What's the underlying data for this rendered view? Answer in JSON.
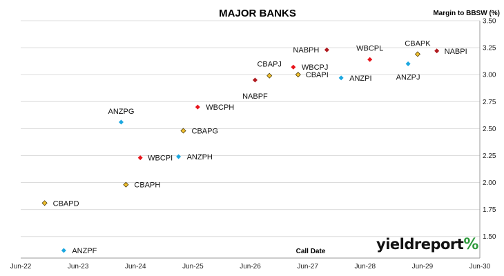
{
  "chart_data": {
    "type": "scatter",
    "title": "MAJOR BANKS",
    "ylabel": "Margin to BBSW (%)",
    "xlabel": "Call Date",
    "ylim": [
      1.3,
      3.5
    ],
    "yticks": [
      "1.50",
      "1.75",
      "2.00",
      "2.25",
      "2.50",
      "2.75",
      "3.00",
      "3.25",
      "3.50"
    ],
    "xlim": [
      "2022-06",
      "2030-06"
    ],
    "xticks": [
      "Jun-22",
      "Jun-23",
      "Jun-24",
      "Jun-25",
      "Jun-26",
      "Jun-27",
      "Jun-28",
      "Jun-29",
      "Jun-30"
    ],
    "grid": "horizontal",
    "y_axis_side": "right",
    "legend": "none",
    "colors": {
      "CBA": "#f2c12e",
      "WBC": "#e8141b",
      "ANZ": "#1ba7e0",
      "NAB": "#b01a1f"
    },
    "points": [
      {
        "label": "CBAPD",
        "group": "CBA",
        "x": "2022-11",
        "y": 1.81
      },
      {
        "label": "ANZPF",
        "group": "ANZ",
        "x": "2023-03",
        "y": 1.37
      },
      {
        "label": "ANZPG",
        "group": "ANZ",
        "x": "2024-03",
        "y": 2.56
      },
      {
        "label": "CBAPH",
        "group": "CBA",
        "x": "2024-04",
        "y": 1.98
      },
      {
        "label": "WBCPI",
        "group": "WBC",
        "x": "2024-07",
        "y": 2.23
      },
      {
        "label": "ANZPH",
        "group": "ANZ",
        "x": "2025-03",
        "y": 2.24
      },
      {
        "label": "CBAPG",
        "group": "CBA",
        "x": "2025-04",
        "y": 2.48
      },
      {
        "label": "WBCPH",
        "group": "WBC",
        "x": "2025-07",
        "y": 2.7
      },
      {
        "label": "NABPF",
        "group": "NAB",
        "x": "2026-07",
        "y": 2.95
      },
      {
        "label": "CBAPJ",
        "group": "CBA",
        "x": "2026-10",
        "y": 2.99
      },
      {
        "label": "WBCPJ",
        "group": "WBC",
        "x": "2027-03",
        "y": 3.07
      },
      {
        "label": "CBAPI",
        "group": "CBA",
        "x": "2027-04",
        "y": 3.0
      },
      {
        "label": "NABPH",
        "group": "NAB",
        "x": "2027-10",
        "y": 3.23
      },
      {
        "label": "ANZPI",
        "group": "ANZ",
        "x": "2028-01",
        "y": 2.97
      },
      {
        "label": "WBCPL",
        "group": "WBC",
        "x": "2028-07",
        "y": 3.14
      },
      {
        "label": "ANZPJ",
        "group": "ANZ",
        "x": "2029-03",
        "y": 3.1
      },
      {
        "label": "CBAPK",
        "group": "CBA",
        "x": "2029-05",
        "y": 3.19
      },
      {
        "label": "NABPI",
        "group": "NAB",
        "x": "2029-09",
        "y": 3.22
      }
    ]
  },
  "branding": {
    "logo_text": "yieldreport",
    "logo_symbol": "%"
  }
}
